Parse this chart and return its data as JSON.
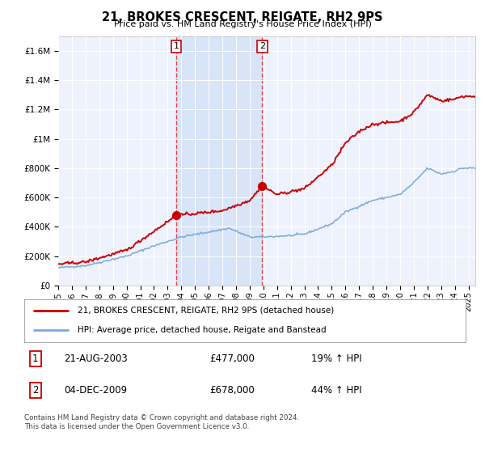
{
  "title": "21, BROKES CRESCENT, REIGATE, RH2 9PS",
  "subtitle": "Price paid vs. HM Land Registry's House Price Index (HPI)",
  "legend_line1": "21, BROKES CRESCENT, REIGATE, RH2 9PS (detached house)",
  "legend_line2": "HPI: Average price, detached house, Reigate and Banstead",
  "annotation1": {
    "num": "1",
    "date": "21-AUG-2003",
    "price": "£477,000",
    "pct": "19% ↑ HPI"
  },
  "annotation2": {
    "num": "2",
    "date": "04-DEC-2009",
    "price": "£678,000",
    "pct": "44% ↑ HPI"
  },
  "vline1_x": 2003.64,
  "vline2_x": 2009.92,
  "dot1_x": 2003.64,
  "dot1_y": 477000,
  "dot2_x": 2009.92,
  "dot2_y": 678000,
  "xmin": 1995,
  "xmax": 2025.5,
  "ymin": 0,
  "ymax": 1700000,
  "yticks": [
    0,
    200000,
    400000,
    600000,
    800000,
    1000000,
    1200000,
    1400000,
    1600000
  ],
  "ytick_labels": [
    "£0",
    "£200K",
    "£400K",
    "£600K",
    "£800K",
    "£1M",
    "£1.2M",
    "£1.4M",
    "£1.6M"
  ],
  "plot_bg": "#eef2fc",
  "red_color": "#cc0000",
  "blue_color": "#7aaadd",
  "vline_color": "#ee3333",
  "span_color": "#d8e4f8",
  "footer": "Contains HM Land Registry data © Crown copyright and database right 2024.\nThis data is licensed under the Open Government Licence v3.0."
}
